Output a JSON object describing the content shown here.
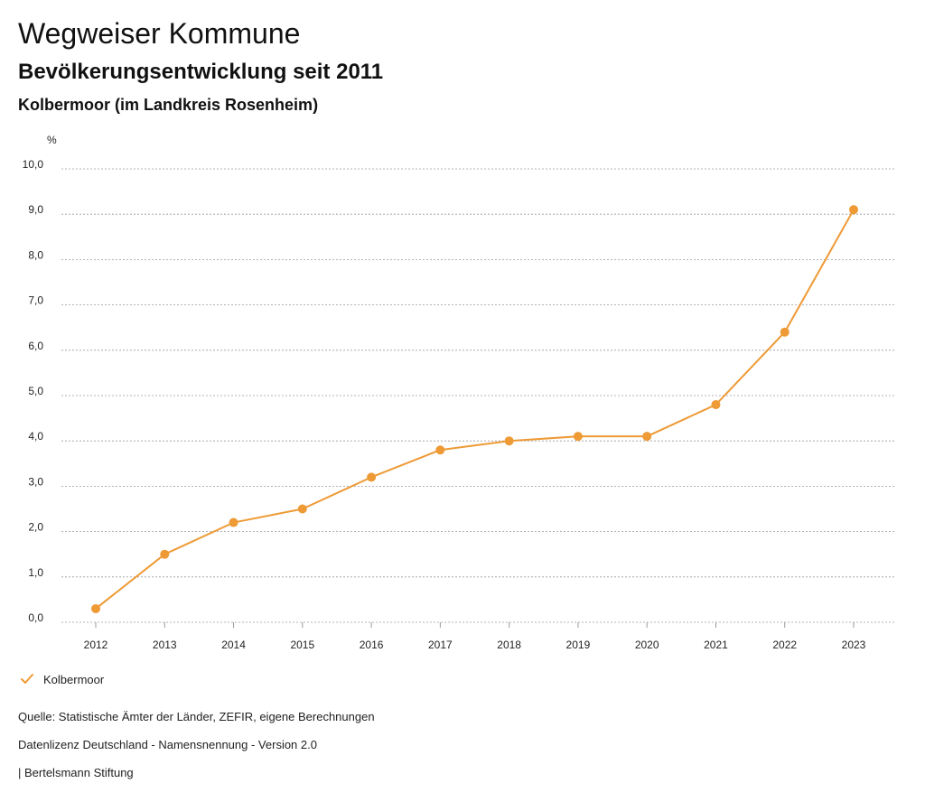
{
  "header": {
    "title": "Wegweiser Kommune",
    "subtitle": "Bevölkerungsentwicklung seit 2011",
    "region": "Kolbermoor (im Landkreis Rosenheim)"
  },
  "chart_data": {
    "type": "line",
    "title": "Bevölkerungsentwicklung seit 2011",
    "xlabel": "",
    "ylabel": "%",
    "ylim": [
      0,
      10
    ],
    "yticks": [
      "0,0",
      "1,0",
      "2,0",
      "3,0",
      "4,0",
      "5,0",
      "6,0",
      "7,0",
      "8,0",
      "9,0",
      "10,0"
    ],
    "categories": [
      "2012",
      "2013",
      "2014",
      "2015",
      "2016",
      "2017",
      "2018",
      "2019",
      "2020",
      "2021",
      "2022",
      "2023"
    ],
    "series": [
      {
        "name": "Kolbermoor",
        "color": "#ee9a35",
        "values": [
          0.3,
          1.5,
          2.2,
          2.5,
          3.2,
          3.8,
          4.0,
          4.1,
          4.1,
          4.8,
          6.4,
          9.1
        ]
      }
    ],
    "grid": true,
    "legend": "bottom-left"
  },
  "legend": {
    "label": "Kolbermoor",
    "icon": "check-icon"
  },
  "footer": {
    "source": "Quelle: Statistische Ämter der Länder, ZEFIR, eigene Berechnungen",
    "license": "Datenlizenz Deutschland - Namensnennung - Version 2.0",
    "publisher": "| Bertelsmann Stiftung"
  }
}
